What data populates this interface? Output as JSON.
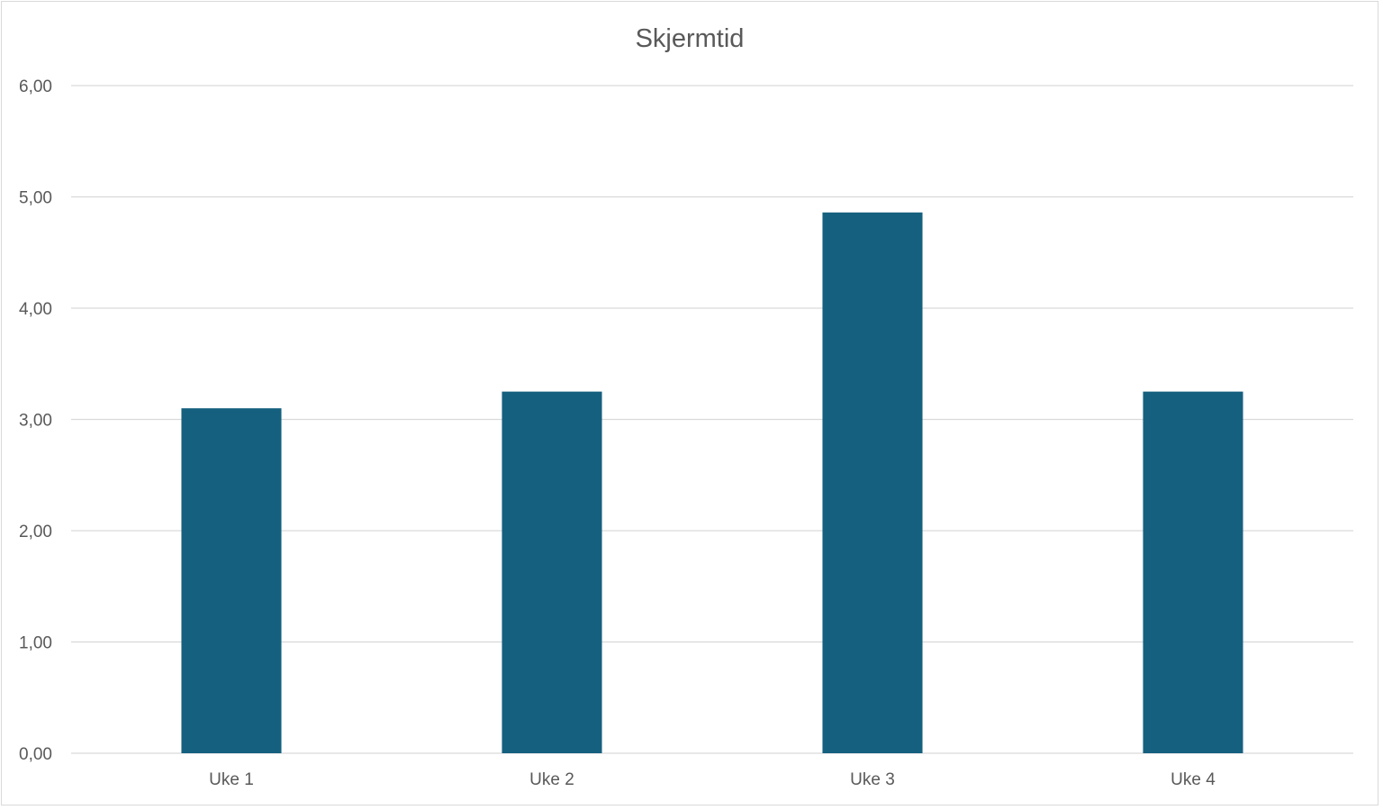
{
  "chart_data": {
    "type": "bar",
    "title": "Skjermtid",
    "xlabel": "",
    "ylabel": "",
    "categories": [
      "Uke 1",
      "Uke 2",
      "Uke 3",
      "Uke 4"
    ],
    "values": [
      3.1,
      3.25,
      4.86,
      3.25
    ],
    "ylim": [
      0,
      6
    ],
    "yticks": [
      0,
      1,
      2,
      3,
      4,
      5,
      6
    ],
    "ytick_labels": [
      "0,00",
      "1,00",
      "2,00",
      "3,00",
      "4,00",
      "5,00",
      "6,00"
    ],
    "grid": true,
    "legend": "none",
    "bar_color": "#16607f"
  }
}
